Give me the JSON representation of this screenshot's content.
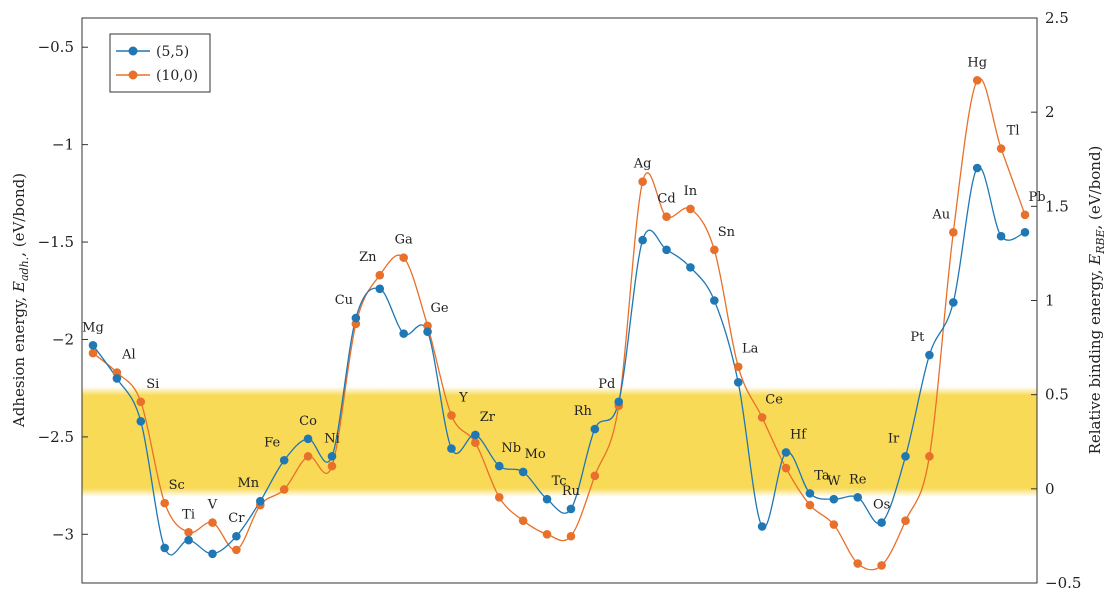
{
  "chart_data": {
    "type": "line",
    "title": "",
    "ylabel_left_parts": [
      "Adhesion energy, ",
      "E",
      "adh.",
      ", (eV/bond)"
    ],
    "ylabel_right_parts": [
      "Relative binding energy, ",
      "E",
      "RBE",
      ", (eV/bond)"
    ],
    "ylim_left": [
      -3.25,
      -0.35
    ],
    "ylim_right": [
      -0.5,
      2.5
    ],
    "yticks_left": [
      -0.5,
      -1,
      -1.5,
      -2,
      -2.5,
      -3
    ],
    "yticks_left_labels": [
      "−0.5",
      "−1",
      "−1.5",
      "−2",
      "−2.5",
      "−3"
    ],
    "yticks_right": [
      2.5,
      2,
      1.5,
      1,
      0.5,
      0,
      -0.5
    ],
    "yticks_right_labels": [
      "2.5",
      "2",
      "1.5",
      "1",
      "0.5",
      "0",
      "−0.5"
    ],
    "band": {
      "axis": "right",
      "from": 0,
      "to": 0.5,
      "color": "#f8d84e"
    },
    "legend_position": "top-left",
    "categories": [
      "Mg",
      "Al",
      "Si",
      "Sc",
      "Ti",
      "V",
      "Cr",
      "Mn",
      "Fe",
      "Co",
      "Ni",
      "Cu",
      "Zn",
      "Ga",
      "Ge",
      "Y",
      "Zr",
      "Nb",
      "Mo",
      "Tc",
      "Ru",
      "Rh",
      "Pd",
      "Ag",
      "Cd",
      "In",
      "Sn",
      "La",
      "Ce",
      "Hf",
      "Ta",
      "W",
      "Re",
      "Os",
      "Ir",
      "Pt",
      "Au",
      "Hg",
      "Tl",
      "Pb"
    ],
    "series": [
      {
        "name": "(5,5)",
        "color": "#1f77b4",
        "axis": "left",
        "values": [
          -2.03,
          -2.2,
          -2.42,
          -3.07,
          -3.03,
          -3.1,
          -3.01,
          -2.83,
          -2.62,
          -2.51,
          -2.6,
          -1.89,
          -1.74,
          -1.97,
          -1.96,
          -2.56,
          -2.49,
          -2.65,
          -2.68,
          -2.82,
          -2.87,
          -2.46,
          -2.32,
          -1.49,
          -1.54,
          -1.63,
          -1.8,
          -2.22,
          -2.96,
          -2.58,
          -2.79,
          -2.82,
          -2.81,
          -2.94,
          -2.6,
          -2.08,
          -1.81,
          -1.12,
          -1.47,
          -1.45
        ]
      },
      {
        "name": "(10,0)",
        "color": "#e8702a",
        "axis": "left",
        "values": [
          -2.07,
          -2.17,
          -2.32,
          -2.84,
          -2.99,
          -2.94,
          -3.08,
          -2.85,
          -2.77,
          -2.6,
          -2.65,
          -1.92,
          -1.67,
          -1.58,
          -1.93,
          -2.39,
          -2.53,
          -2.81,
          -2.93,
          -3.0,
          -3.01,
          -2.7,
          -2.34,
          -1.19,
          -1.37,
          -1.33,
          -1.54,
          -2.14,
          -2.4,
          -2.66,
          -2.85,
          -2.95,
          -3.15,
          -3.16,
          -2.93,
          -2.6,
          -1.45,
          -0.67,
          -1.02,
          -1.36
        ]
      }
    ],
    "label_offsets_note": "",
    "labels": [
      "Mg",
      "Al",
      "Si",
      "Sc",
      "Ti",
      "V",
      "Cr",
      "Mn",
      "Fe",
      "Co",
      "Ni",
      "Cu",
      "Zn",
      "Ga",
      "Ge",
      "Y",
      "Zr",
      "Nb",
      "Mo",
      "Tc",
      "Ru",
      "Rh",
      "Pd",
      "Ag",
      "Cd",
      "In",
      "Sn",
      "La",
      "Ce",
      "Hf",
      "Ta",
      "W",
      "Re",
      "Os",
      "Ir",
      "Pt",
      "Au",
      "Hg",
      "Tl",
      "Pb"
    ]
  }
}
